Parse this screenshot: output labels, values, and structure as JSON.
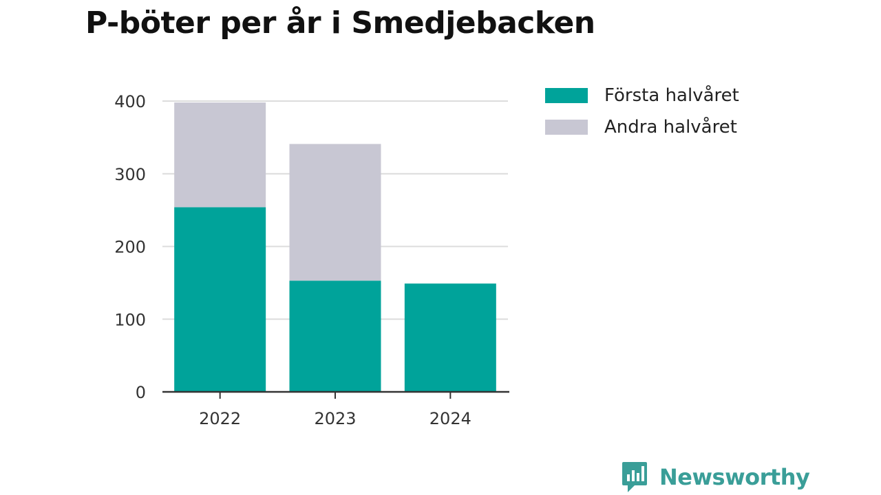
{
  "chart_data": {
    "type": "bar",
    "stacked": true,
    "title": "P-böter per år i Smedjebacken",
    "xlabel": "",
    "ylabel": "",
    "categories": [
      "2022",
      "2023",
      "2024"
    ],
    "series": [
      {
        "name": "Första halvåret",
        "color": "#00a39a",
        "values": [
          254,
          153,
          149
        ]
      },
      {
        "name": "Andra halvåret",
        "color": "#c8c7d3",
        "values": [
          144,
          188,
          0
        ]
      }
    ],
    "ylim": [
      0,
      400
    ],
    "yticks": [
      "0",
      "100",
      "200",
      "300",
      "400"
    ],
    "grid": true,
    "legend_position": "right"
  },
  "branding": {
    "name": "Newsworthy",
    "color": "#3a9e98",
    "icon": "newsworthy-logo-icon"
  }
}
